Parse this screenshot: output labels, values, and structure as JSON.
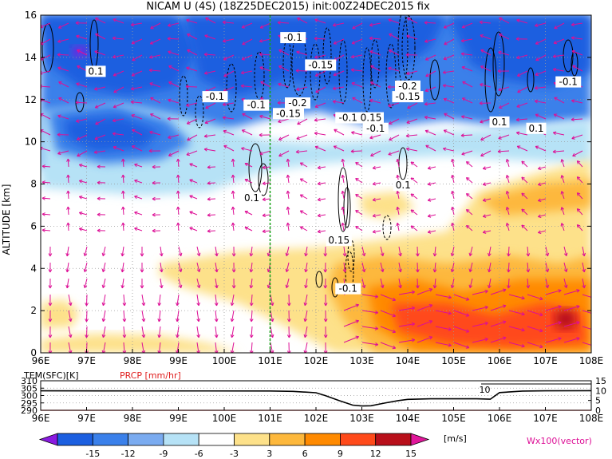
{
  "chart_data": [
    {
      "type": "heatmap",
      "title": "NICAM U (4S) (18Z25DEC2015) init:00Z24DEC2015 fix",
      "ylabel": "ALTITUDE [km]",
      "xlim": [
        96,
        108
      ],
      "ylim": [
        0,
        16
      ],
      "x_ticks": [
        "96E",
        "97E",
        "98E",
        "99E",
        "100E",
        "101E",
        "102E",
        "103E",
        "104E",
        "105E",
        "106E",
        "107E",
        "108E"
      ],
      "y_ticks": [
        "0",
        "2",
        "4",
        "6",
        "8",
        "10",
        "12",
        "14",
        "16"
      ],
      "grid": true,
      "marker_line_lon": 101,
      "contour_labels": [
        {
          "text": "-0.1",
          "lon": 101.5,
          "alt": 14.9
        },
        {
          "text": "-0.15",
          "lon": 102.1,
          "alt": 13.6
        },
        {
          "text": "0.1",
          "lon": 97.2,
          "alt": 13.3
        },
        {
          "text": "-0.1",
          "lon": 99.8,
          "alt": 12.1
        },
        {
          "text": "-0.1",
          "lon": 100.7,
          "alt": 11.7
        },
        {
          "text": "-0.2",
          "lon": 101.6,
          "alt": 11.8
        },
        {
          "text": "-0.15",
          "lon": 101.4,
          "alt": 11.3
        },
        {
          "text": "-0.1",
          "lon": 102.7,
          "alt": 11.1
        },
        {
          "text": "0.15",
          "lon": 103.2,
          "alt": 11.1
        },
        {
          "text": "-0.1",
          "lon": 103.3,
          "alt": 10.6
        },
        {
          "text": "-0.2",
          "lon": 104.0,
          "alt": 12.6
        },
        {
          "text": "-0.15",
          "lon": 104.0,
          "alt": 12.1
        },
        {
          "text": "-0.1",
          "lon": 107.5,
          "alt": 12.8
        },
        {
          "text": "0.1",
          "lon": 106.0,
          "alt": 10.9
        },
        {
          "text": "0.1",
          "lon": 106.8,
          "alt": 10.6
        },
        {
          "text": "0.1",
          "lon": 100.6,
          "alt": 7.3
        },
        {
          "text": "0.1",
          "lon": 103.9,
          "alt": 7.9
        },
        {
          "text": "0.15",
          "lon": 102.5,
          "alt": 5.3
        },
        {
          "text": "-0.1",
          "lon": 102.7,
          "alt": 3.0
        }
      ],
      "colors": {
        "vector": "#dd0f96",
        "contour": "#000000",
        "marker_line": "#17a317",
        "grid": "#9a9a9a"
      }
    },
    {
      "type": "line",
      "tem_label": "TEM(SFC)[K]",
      "prcp_label": "PRCP [mm/hr]",
      "left_ticks": [
        "310",
        "305",
        "300",
        "295",
        "290"
      ],
      "right_ticks": [
        "15",
        "10",
        "5",
        "0"
      ],
      "x_ticks": [
        "96E",
        "97E",
        "98E",
        "99E",
        "100E",
        "101E",
        "102E",
        "103E",
        "104E",
        "105E",
        "106E",
        "107E",
        "108E"
      ],
      "xlim": [
        96,
        108
      ],
      "left_ylim": [
        290,
        310
      ],
      "right_ylim": [
        0,
        15
      ],
      "annotation": "10",
      "annotation_lon": 105.8,
      "series": [
        {
          "name": "TEM(SFC)[K]",
          "x": [
            96,
            101,
            101.5,
            102,
            102.2,
            102.5,
            102.8,
            103.0,
            103.2,
            103.5,
            103.8,
            104.0,
            104.5,
            105.0,
            105.5,
            105.8,
            106.0,
            106.5,
            107.0,
            108
          ],
          "y": [
            303.2,
            303.1,
            302.8,
            301.9,
            300.0,
            296.6,
            293.5,
            292.9,
            293.1,
            294.9,
            296.6,
            297.4,
            297.8,
            297.8,
            297.8,
            297.5,
            302.0,
            303.0,
            303.2,
            303.3
          ]
        },
        {
          "name": "PRCP [mm/hr]",
          "x": [
            96,
            108
          ],
          "y": [
            0,
            0
          ]
        }
      ],
      "colors": {
        "tem": "#000000",
        "prcp": "#e01e1e",
        "tem_label": "#000000",
        "prcp_label": "#e01e1e"
      }
    }
  ],
  "colorbar": {
    "labels": [
      "-15",
      "-12",
      "-9",
      "-6",
      "-3",
      "3",
      "6",
      "9",
      "12",
      "15"
    ],
    "unit": "[m/s]",
    "vector_note": "Wx100(vector)",
    "colors": [
      "#8a1ae0",
      "#1c5fe0",
      "#3a80ea",
      "#7aabf0",
      "#b6e2f6",
      "#ffffff",
      "#fde18a",
      "#fdb83c",
      "#ff8a00",
      "#ff4a1a",
      "#b80f1a",
      "#e0179a"
    ],
    "vector_note_color": "#dd0f96"
  }
}
